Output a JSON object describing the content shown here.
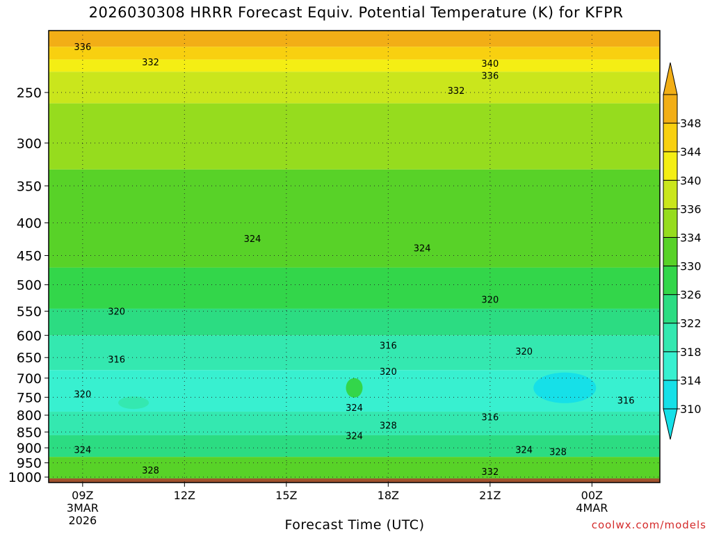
{
  "chart_data": {
    "type": "heatmap",
    "title": "2026030308 HRRR Forecast Equiv. Potential Temperature (K) for KFPR",
    "xlabel": "Forecast Time (UTC)",
    "ylabel": "",
    "x_ticks": [
      {
        "hour": 9,
        "label": "09Z",
        "date": "3MAR",
        "year": "2026"
      },
      {
        "hour": 12,
        "label": "12Z"
      },
      {
        "hour": 15,
        "label": "15Z"
      },
      {
        "hour": 18,
        "label": "18Z"
      },
      {
        "hour": 21,
        "label": "21Z"
      },
      {
        "hour": 24,
        "label": "00Z",
        "date": "4MAR"
      }
    ],
    "xlim": [
      8.0,
      26.0
    ],
    "y_ticks": [
      250,
      300,
      350,
      400,
      450,
      500,
      550,
      600,
      650,
      700,
      750,
      800,
      850,
      900,
      950,
      1000
    ],
    "ylim": [
      1020,
      200
    ],
    "colorbar": {
      "levels": [
        310,
        314,
        318,
        322,
        326,
        330,
        334,
        336,
        340,
        344,
        348
      ],
      "colors": [
        "#16e0e8",
        "#38f0d0",
        "#34e8b0",
        "#2cdc82",
        "#33d64a",
        "#58d228",
        "#96dc1e",
        "#cae61c",
        "#f4ee14",
        "#f8d010",
        "#f2ae16"
      ]
    },
    "ground_color": "#a0522d",
    "contour_labels": [
      {
        "text": "336",
        "x": 9.0,
        "p": 212
      },
      {
        "text": "332",
        "x": 11.0,
        "p": 224
      },
      {
        "text": "340",
        "x": 21.0,
        "p": 225
      },
      {
        "text": "336",
        "x": 21.0,
        "p": 235
      },
      {
        "text": "332",
        "x": 20.0,
        "p": 248
      },
      {
        "text": "324",
        "x": 14.0,
        "p": 423
      },
      {
        "text": "324",
        "x": 19.0,
        "p": 438
      },
      {
        "text": "320",
        "x": 21.0,
        "p": 527
      },
      {
        "text": "320",
        "x": 10.0,
        "p": 550
      },
      {
        "text": "316",
        "x": 18.0,
        "p": 622
      },
      {
        "text": "316",
        "x": 10.0,
        "p": 654
      },
      {
        "text": "320",
        "x": 22.0,
        "p": 635
      },
      {
        "text": "320",
        "x": 18.0,
        "p": 683
      },
      {
        "text": "320",
        "x": 9.0,
        "p": 741
      },
      {
        "text": "316",
        "x": 25.0,
        "p": 758
      },
      {
        "text": "324",
        "x": 17.0,
        "p": 778
      },
      {
        "text": "316",
        "x": 21.0,
        "p": 805
      },
      {
        "text": "328",
        "x": 18.0,
        "p": 829
      },
      {
        "text": "324",
        "x": 17.0,
        "p": 861
      },
      {
        "text": "324",
        "x": 9.0,
        "p": 906
      },
      {
        "text": "324",
        "x": 22.0,
        "p": 906
      },
      {
        "text": "328",
        "x": 23.0,
        "p": 912
      },
      {
        "text": "328",
        "x": 11.0,
        "p": 975
      },
      {
        "text": "332",
        "x": 21.0,
        "p": 980
      }
    ]
  },
  "credit": "coolwx.com/models"
}
